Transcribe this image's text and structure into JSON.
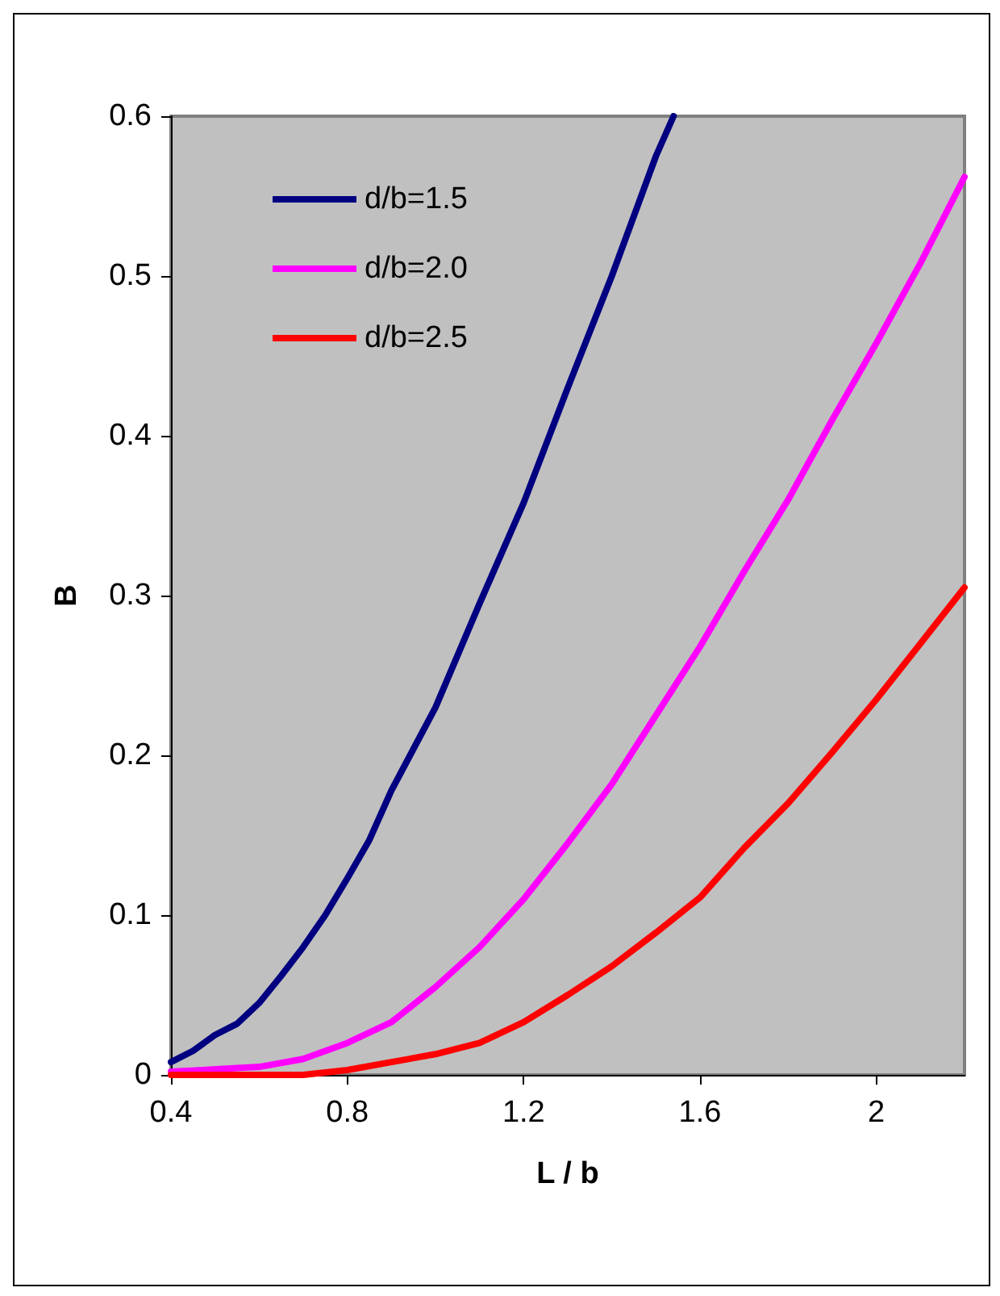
{
  "chart_data": {
    "type": "line",
    "xlabel": "L / b",
    "ylabel": "B",
    "xlim": [
      0.4,
      2.2
    ],
    "xticks": [
      0.4,
      0.8,
      1.2,
      1.6,
      2
    ],
    "ylim": [
      0,
      0.6
    ],
    "yticks": [
      0,
      0.1,
      0.2,
      0.3,
      0.4,
      0.5,
      0.6
    ],
    "grid": false,
    "legend": "top left",
    "marker": "none",
    "line_style": "solid",
    "series": [
      {
        "name": "d/b=1.5",
        "color": "#000080",
        "x": [
          0.4,
          0.45,
          0.5,
          0.55,
          0.6,
          0.65,
          0.7,
          0.75,
          0.8,
          0.85,
          0.9,
          1.0,
          1.1,
          1.2,
          1.3,
          1.4,
          1.5,
          1.54
        ],
        "values": [
          0.008,
          0.015,
          0.025,
          0.032,
          0.045,
          0.062,
          0.08,
          0.1,
          0.123,
          0.147,
          0.178,
          0.23,
          0.295,
          0.358,
          0.43,
          0.5,
          0.575,
          0.6
        ]
      },
      {
        "name": "d/b=2.0",
        "color": "#ff00ff",
        "x": [
          0.4,
          0.6,
          0.7,
          0.8,
          0.9,
          1.0,
          1.1,
          1.2,
          1.3,
          1.4,
          1.5,
          1.6,
          1.7,
          1.8,
          1.9,
          2.0,
          2.1,
          2.2
        ],
        "values": [
          0.002,
          0.005,
          0.01,
          0.02,
          0.033,
          0.055,
          0.08,
          0.11,
          0.145,
          0.182,
          0.225,
          0.268,
          0.315,
          0.36,
          0.41,
          0.458,
          0.508,
          0.562
        ]
      },
      {
        "name": "d/b=2.5",
        "color": "#ff0000",
        "x": [
          0.4,
          0.7,
          0.8,
          0.9,
          1.0,
          1.1,
          1.2,
          1.3,
          1.4,
          1.5,
          1.6,
          1.7,
          1.8,
          1.9,
          2.0,
          2.1,
          2.2
        ],
        "values": [
          0,
          0,
          0.003,
          0.008,
          0.013,
          0.02,
          0.033,
          0.05,
          0.068,
          0.089,
          0.111,
          0.142,
          0.17,
          0.202,
          0.235,
          0.27,
          0.305
        ]
      }
    ]
  }
}
